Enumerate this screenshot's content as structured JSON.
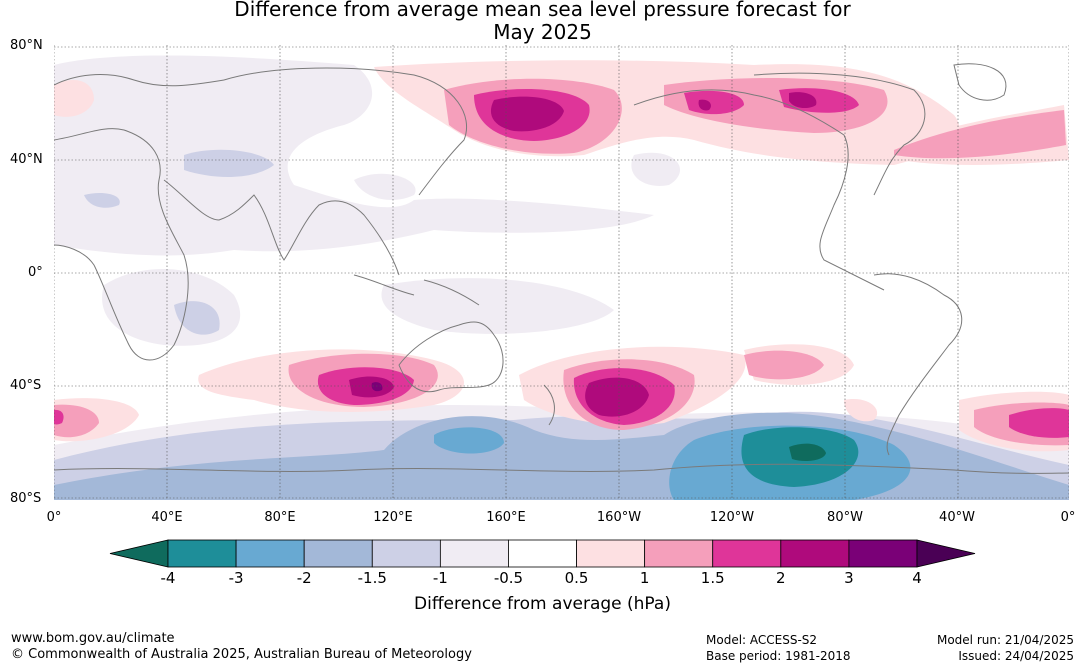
{
  "title_line1": "Difference from average mean sea level pressure forecast for",
  "title_line2": "May 2025",
  "lat_labels": [
    "80°N",
    "40°N",
    "0°",
    "40°S",
    "80°S"
  ],
  "lon_labels": [
    "0°",
    "40°E",
    "80°E",
    "120°E",
    "160°E",
    "160°W",
    "120°W",
    "80°W",
    "40°W",
    "0°"
  ],
  "colorbar": {
    "labels": [
      "-4",
      "-3",
      "-2",
      "-1.5",
      "-1",
      "-0.5",
      "0.5",
      "1",
      "1.5",
      "2",
      "3",
      "4"
    ],
    "colors": [
      "#0f6b5d",
      "#1e8e99",
      "#68a9d2",
      "#a3b8d8",
      "#cdd0e6",
      "#f0ecf3",
      "#ffffff",
      "#fde0e2",
      "#f59fbb",
      "#df3599",
      "#af0a7c",
      "#7a0077",
      "#4a0055"
    ],
    "title": "Difference from average (hPa)"
  },
  "footer": {
    "website": "www.bom.gov.au/climate",
    "copyright": "© Commonwealth of Australia 2025, Australian Bureau of Meteorology",
    "model": "Model: ACCESS-S2",
    "base_period": "Base period: 1981-2018",
    "model_run": "Model run: 21/04/2025",
    "issued": "Issued: 24/04/2025"
  }
}
